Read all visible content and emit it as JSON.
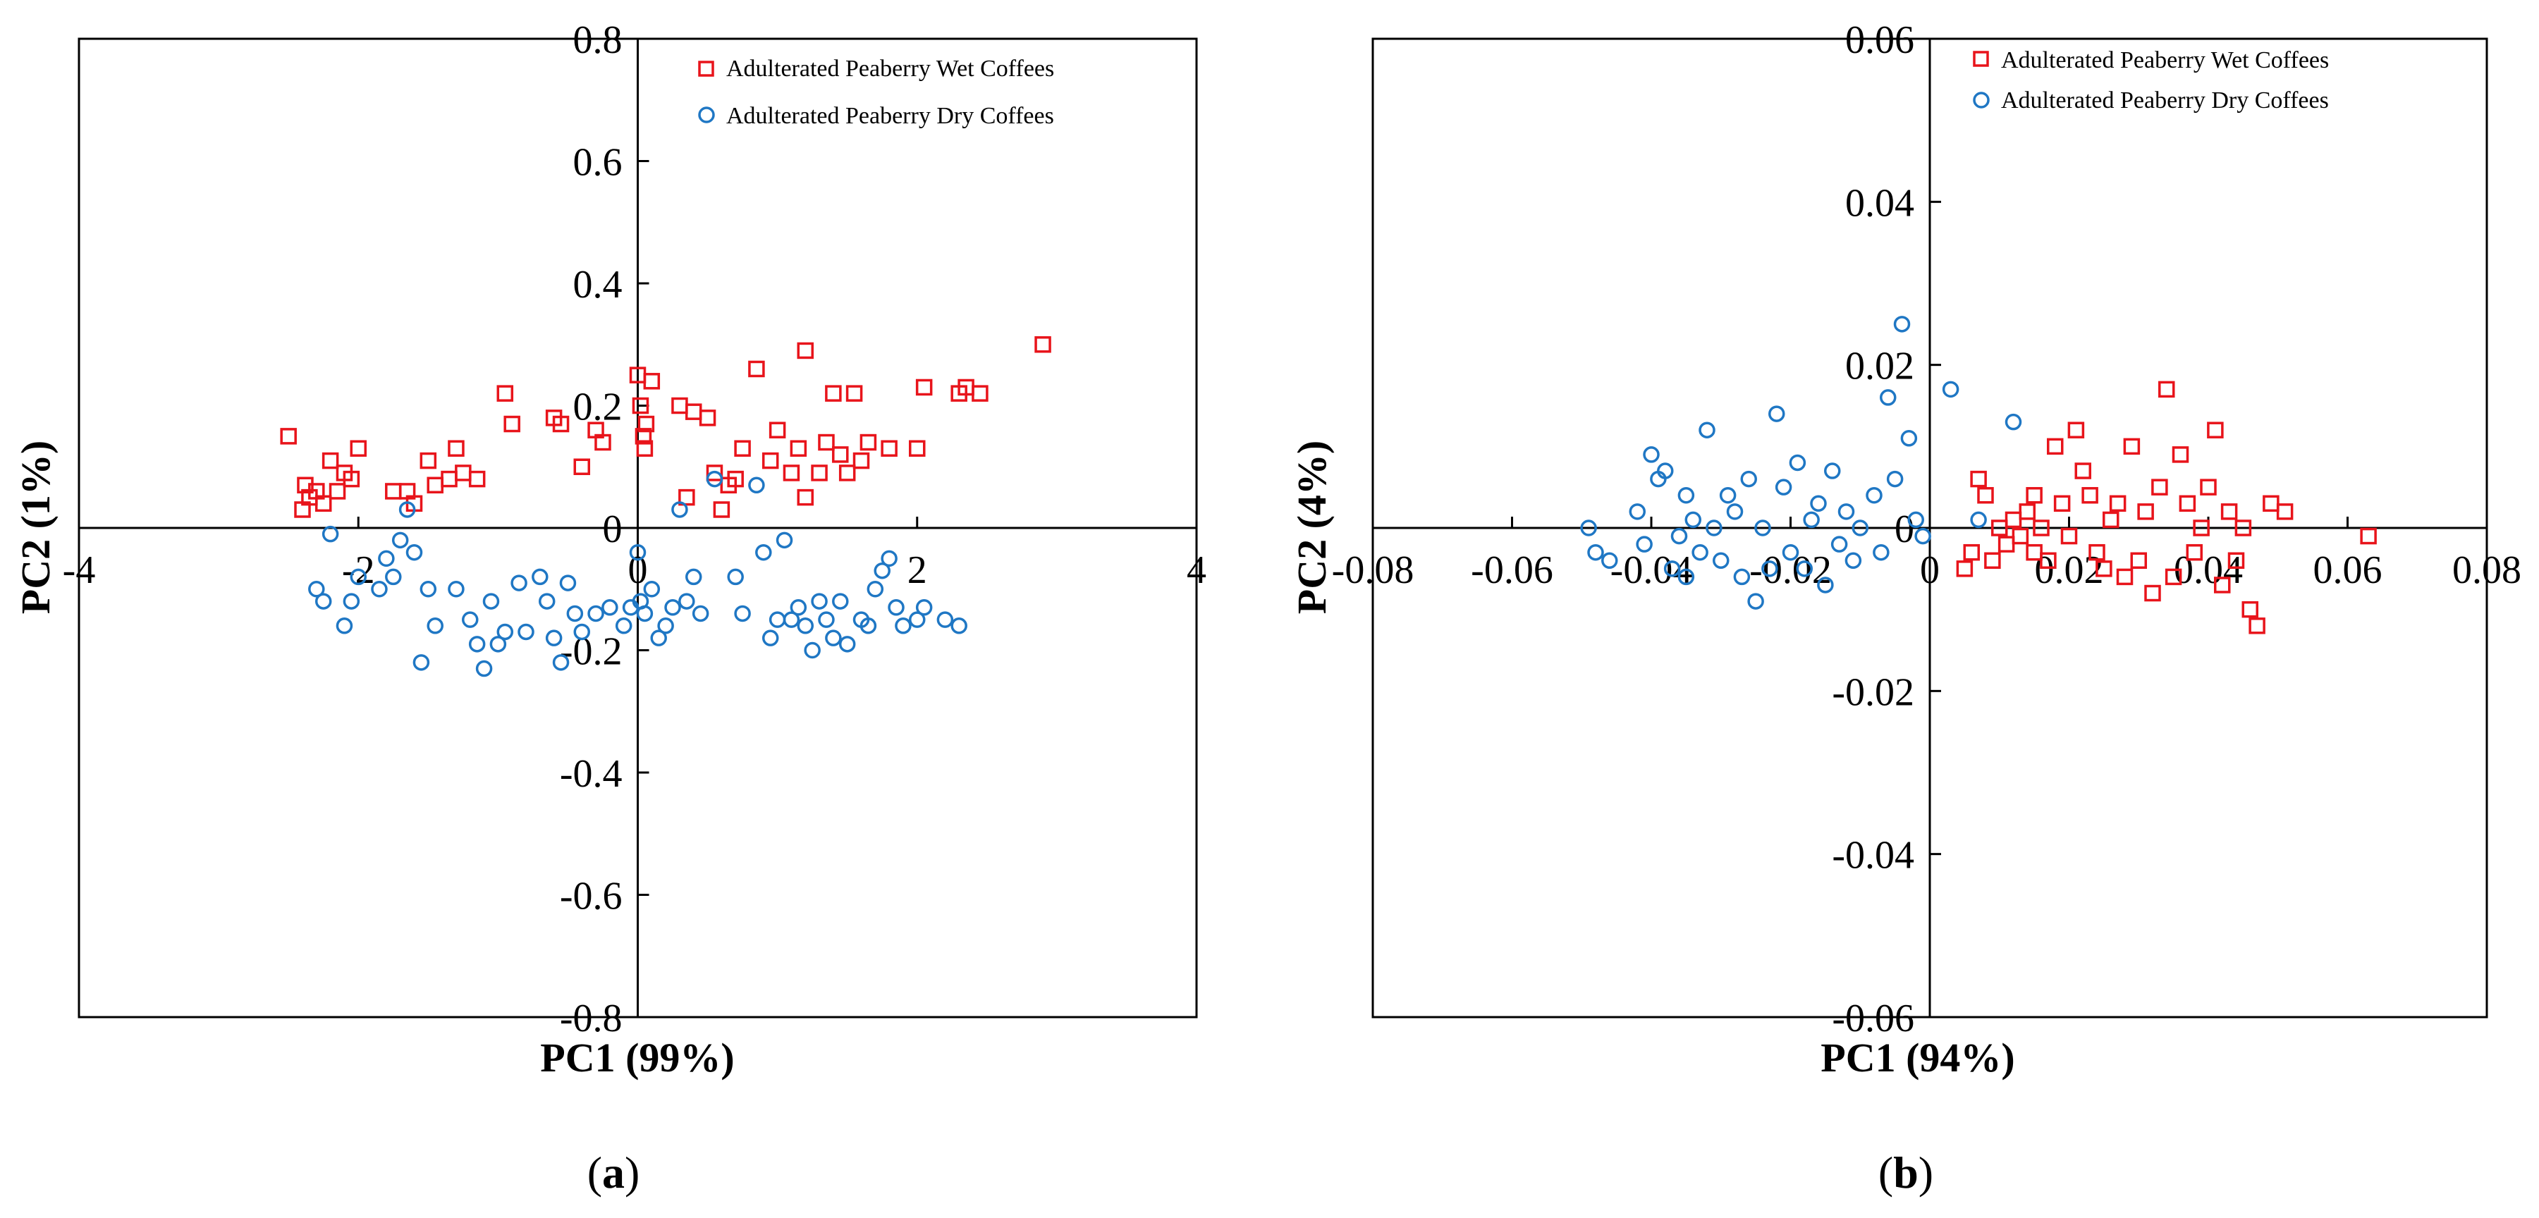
{
  "chart_data": [
    {
      "type": "scatter",
      "panel_label": "(a)",
      "panel_letter": "a",
      "xlabel": "PC1 (99%)",
      "ylabel": "PC2 (1%)",
      "xlim": [
        -4,
        4
      ],
      "ylim": [
        -0.8,
        0.8
      ],
      "x_ticks": [
        -4,
        -2,
        0,
        2,
        4
      ],
      "x_tick_labels": [
        "-4",
        "-2",
        "0",
        "2",
        "4"
      ],
      "y_ticks": [
        -0.8,
        -0.6,
        -0.4,
        -0.2,
        0,
        0.2,
        0.4,
        0.6,
        0.8
      ],
      "y_tick_labels": [
        "-0.8",
        "-0.6",
        "-0.4",
        "-0.2",
        "0",
        "0.2",
        "0.4",
        "0.6",
        "0.8"
      ],
      "legend_position": "top-right",
      "series": [
        {
          "name": "Adulterated Peaberry Wet Coffees",
          "marker": "square",
          "color": "#e8141b",
          "points": [
            [
              -2.5,
              0.15
            ],
            [
              -2.4,
              0.03
            ],
            [
              -2.38,
              0.07
            ],
            [
              -2.35,
              0.05
            ],
            [
              -2.3,
              0.06
            ],
            [
              -2.25,
              0.04
            ],
            [
              -2.2,
              0.11
            ],
            [
              -2.15,
              0.06
            ],
            [
              -2.1,
              0.09
            ],
            [
              -2.05,
              0.08
            ],
            [
              -2.0,
              0.13
            ],
            [
              -1.75,
              0.06
            ],
            [
              -1.65,
              0.06
            ],
            [
              -1.6,
              0.04
            ],
            [
              -1.5,
              0.11
            ],
            [
              -1.45,
              0.07
            ],
            [
              -1.35,
              0.08
            ],
            [
              -1.3,
              0.13
            ],
            [
              -1.25,
              0.09
            ],
            [
              -1.15,
              0.08
            ],
            [
              -0.95,
              0.22
            ],
            [
              -0.9,
              0.17
            ],
            [
              -0.6,
              0.18
            ],
            [
              -0.55,
              0.17
            ],
            [
              -0.4,
              0.1
            ],
            [
              -0.3,
              0.16
            ],
            [
              -0.25,
              0.14
            ],
            [
              0.0,
              0.25
            ],
            [
              0.02,
              0.2
            ],
            [
              0.04,
              0.15
            ],
            [
              0.05,
              0.13
            ],
            [
              0.06,
              0.17
            ],
            [
              0.1,
              0.24
            ],
            [
              0.3,
              0.2
            ],
            [
              0.35,
              0.05
            ],
            [
              0.4,
              0.19
            ],
            [
              0.5,
              0.18
            ],
            [
              0.55,
              0.09
            ],
            [
              0.6,
              0.03
            ],
            [
              0.65,
              0.07
            ],
            [
              0.7,
              0.08
            ],
            [
              0.75,
              0.13
            ],
            [
              0.85,
              0.26
            ],
            [
              0.95,
              0.11
            ],
            [
              1.0,
              0.16
            ],
            [
              1.1,
              0.09
            ],
            [
              1.15,
              0.13
            ],
            [
              1.2,
              0.05
            ],
            [
              1.2,
              0.29
            ],
            [
              1.3,
              0.09
            ],
            [
              1.35,
              0.14
            ],
            [
              1.4,
              0.22
            ],
            [
              1.45,
              0.12
            ],
            [
              1.5,
              0.09
            ],
            [
              1.55,
              0.22
            ],
            [
              1.6,
              0.11
            ],
            [
              1.65,
              0.14
            ],
            [
              1.8,
              0.13
            ],
            [
              2.0,
              0.13
            ],
            [
              2.05,
              0.23
            ],
            [
              2.3,
              0.22
            ],
            [
              2.35,
              0.23
            ],
            [
              2.45,
              0.22
            ],
            [
              2.9,
              0.3
            ]
          ]
        },
        {
          "name": "Adulterated Peaberry Dry Coffees",
          "marker": "circle",
          "color": "#1f77c4",
          "points": [
            [
              -2.3,
              -0.1
            ],
            [
              -2.25,
              -0.12
            ],
            [
              -2.2,
              -0.01
            ],
            [
              -2.1,
              -0.16
            ],
            [
              -2.05,
              -0.12
            ],
            [
              -2.0,
              -0.08
            ],
            [
              -1.85,
              -0.1
            ],
            [
              -1.8,
              -0.05
            ],
            [
              -1.75,
              -0.08
            ],
            [
              -1.7,
              -0.02
            ],
            [
              -1.65,
              0.03
            ],
            [
              -1.6,
              -0.04
            ],
            [
              -1.55,
              -0.22
            ],
            [
              -1.5,
              -0.1
            ],
            [
              -1.45,
              -0.16
            ],
            [
              -1.3,
              -0.1
            ],
            [
              -1.2,
              -0.15
            ],
            [
              -1.15,
              -0.19
            ],
            [
              -1.1,
              -0.23
            ],
            [
              -1.05,
              -0.12
            ],
            [
              -1.0,
              -0.19
            ],
            [
              -0.95,
              -0.17
            ],
            [
              -0.85,
              -0.09
            ],
            [
              -0.8,
              -0.17
            ],
            [
              -0.7,
              -0.08
            ],
            [
              -0.65,
              -0.12
            ],
            [
              -0.6,
              -0.18
            ],
            [
              -0.55,
              -0.22
            ],
            [
              -0.5,
              -0.09
            ],
            [
              -0.45,
              -0.14
            ],
            [
              -0.4,
              -0.17
            ],
            [
              -0.3,
              -0.14
            ],
            [
              -0.2,
              -0.13
            ],
            [
              -0.1,
              -0.16
            ],
            [
              -0.05,
              -0.13
            ],
            [
              0.0,
              -0.04
            ],
            [
              0.02,
              -0.12
            ],
            [
              0.05,
              -0.14
            ],
            [
              0.1,
              -0.1
            ],
            [
              0.15,
              -0.18
            ],
            [
              0.2,
              -0.16
            ],
            [
              0.25,
              -0.13
            ],
            [
              0.3,
              0.03
            ],
            [
              0.35,
              -0.12
            ],
            [
              0.4,
              -0.08
            ],
            [
              0.45,
              -0.14
            ],
            [
              0.55,
              0.08
            ],
            [
              0.7,
              -0.08
            ],
            [
              0.75,
              -0.14
            ],
            [
              0.85,
              0.07
            ],
            [
              0.9,
              -0.04
            ],
            [
              0.95,
              -0.18
            ],
            [
              1.0,
              -0.15
            ],
            [
              1.05,
              -0.02
            ],
            [
              1.1,
              -0.15
            ],
            [
              1.15,
              -0.13
            ],
            [
              1.2,
              -0.16
            ],
            [
              1.25,
              -0.2
            ],
            [
              1.3,
              -0.12
            ],
            [
              1.35,
              -0.15
            ],
            [
              1.4,
              -0.18
            ],
            [
              1.45,
              -0.12
            ],
            [
              1.5,
              -0.19
            ],
            [
              1.6,
              -0.15
            ],
            [
              1.65,
              -0.16
            ],
            [
              1.7,
              -0.1
            ],
            [
              1.75,
              -0.07
            ],
            [
              1.8,
              -0.05
            ],
            [
              1.85,
              -0.13
            ],
            [
              1.9,
              -0.16
            ],
            [
              2.0,
              -0.15
            ],
            [
              2.05,
              -0.13
            ],
            [
              2.2,
              -0.15
            ],
            [
              2.3,
              -0.16
            ]
          ]
        }
      ]
    },
    {
      "type": "scatter",
      "panel_label": "(b)",
      "panel_letter": "b",
      "xlabel": "PC1 (94%)",
      "ylabel": "PC2 (4%)",
      "xlim": [
        -0.08,
        0.08
      ],
      "ylim": [
        -0.06,
        0.06
      ],
      "x_ticks": [
        -0.08,
        -0.06,
        -0.04,
        -0.02,
        0,
        0.02,
        0.04,
        0.06,
        0.08
      ],
      "x_tick_labels": [
        "-0.08",
        "-0.06",
        "-0.04",
        "-0.02",
        "0",
        "0.02",
        "0.04",
        "0.06",
        "0.08"
      ],
      "y_ticks": [
        -0.06,
        -0.04,
        -0.02,
        0,
        0.02,
        0.04,
        0.06
      ],
      "y_tick_labels": [
        "-0.06",
        "-0.04",
        "-0.02",
        "0",
        "0.02",
        "0.04",
        "0.06"
      ],
      "legend_position": "top-right",
      "series": [
        {
          "name": "Adulterated Peaberry Wet Coffees",
          "marker": "square",
          "color": "#e8141b",
          "points": [
            [
              0.005,
              -0.005
            ],
            [
              0.006,
              -0.003
            ],
            [
              0.007,
              0.006
            ],
            [
              0.008,
              0.004
            ],
            [
              0.009,
              -0.004
            ],
            [
              0.01,
              0.0
            ],
            [
              0.011,
              -0.002
            ],
            [
              0.012,
              0.001
            ],
            [
              0.013,
              -0.001
            ],
            [
              0.014,
              0.002
            ],
            [
              0.015,
              -0.003
            ],
            [
              0.015,
              0.004
            ],
            [
              0.016,
              0.0
            ],
            [
              0.017,
              -0.004
            ],
            [
              0.018,
              0.01
            ],
            [
              0.019,
              0.003
            ],
            [
              0.02,
              -0.001
            ],
            [
              0.021,
              0.012
            ],
            [
              0.022,
              0.007
            ],
            [
              0.023,
              0.004
            ],
            [
              0.024,
              -0.003
            ],
            [
              0.025,
              -0.005
            ],
            [
              0.026,
              0.001
            ],
            [
              0.027,
              0.003
            ],
            [
              0.028,
              -0.006
            ],
            [
              0.029,
              0.01
            ],
            [
              0.03,
              -0.004
            ],
            [
              0.031,
              0.002
            ],
            [
              0.032,
              -0.008
            ],
            [
              0.033,
              0.005
            ],
            [
              0.034,
              0.017
            ],
            [
              0.035,
              -0.006
            ],
            [
              0.036,
              0.009
            ],
            [
              0.037,
              0.003
            ],
            [
              0.038,
              -0.003
            ],
            [
              0.039,
              0.0
            ],
            [
              0.04,
              0.005
            ],
            [
              0.041,
              0.012
            ],
            [
              0.042,
              -0.007
            ],
            [
              0.043,
              0.002
            ],
            [
              0.044,
              -0.004
            ],
            [
              0.045,
              0.0
            ],
            [
              0.046,
              -0.01
            ],
            [
              0.047,
              -0.012
            ],
            [
              0.049,
              0.003
            ],
            [
              0.051,
              0.002
            ],
            [
              0.063,
              -0.001
            ]
          ]
        },
        {
          "name": "Adulterated Peaberry Dry Coffees",
          "marker": "circle",
          "color": "#1f77c4",
          "points": [
            [
              -0.049,
              0.0
            ],
            [
              -0.048,
              -0.003
            ],
            [
              -0.046,
              -0.004
            ],
            [
              -0.042,
              0.002
            ],
            [
              -0.041,
              -0.002
            ],
            [
              -0.04,
              0.009
            ],
            [
              -0.039,
              0.006
            ],
            [
              -0.038,
              0.007
            ],
            [
              -0.037,
              -0.005
            ],
            [
              -0.036,
              -0.001
            ],
            [
              -0.035,
              0.004
            ],
            [
              -0.035,
              -0.006
            ],
            [
              -0.034,
              0.001
            ],
            [
              -0.033,
              -0.003
            ],
            [
              -0.032,
              0.012
            ],
            [
              -0.031,
              0.0
            ],
            [
              -0.03,
              -0.004
            ],
            [
              -0.029,
              0.004
            ],
            [
              -0.028,
              0.002
            ],
            [
              -0.027,
              -0.006
            ],
            [
              -0.026,
              0.006
            ],
            [
              -0.025,
              -0.009
            ],
            [
              -0.024,
              0.0
            ],
            [
              -0.023,
              -0.005
            ],
            [
              -0.022,
              0.014
            ],
            [
              -0.021,
              0.005
            ],
            [
              -0.02,
              -0.003
            ],
            [
              -0.019,
              0.008
            ],
            [
              -0.018,
              -0.005
            ],
            [
              -0.017,
              0.001
            ],
            [
              -0.016,
              0.003
            ],
            [
              -0.015,
              -0.007
            ],
            [
              -0.014,
              0.007
            ],
            [
              -0.013,
              -0.002
            ],
            [
              -0.012,
              0.002
            ],
            [
              -0.011,
              -0.004
            ],
            [
              -0.01,
              0.0
            ],
            [
              -0.008,
              0.004
            ],
            [
              -0.007,
              -0.003
            ],
            [
              -0.006,
              0.016
            ],
            [
              -0.005,
              0.006
            ],
            [
              -0.004,
              0.025
            ],
            [
              -0.003,
              0.011
            ],
            [
              -0.002,
              0.001
            ],
            [
              -0.001,
              -0.001
            ],
            [
              0.003,
              0.017
            ],
            [
              0.007,
              0.001
            ],
            [
              0.012,
              0.013
            ]
          ]
        }
      ]
    }
  ]
}
